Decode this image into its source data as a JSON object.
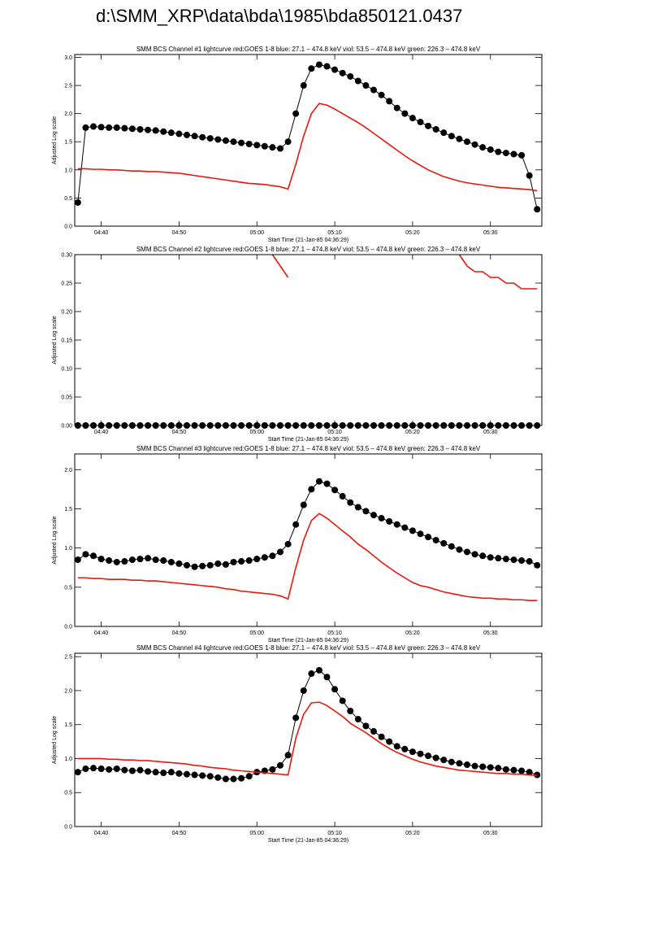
{
  "page_title": "d:\\SMM_XRP\\data\\bda\\1985\\bda850121.0437",
  "chart_data": [
    {
      "type": "line",
      "title": "SMM BCS Channel #1 lightcurve  red:GOES 1-8  blue: 27.1 – 474.8 keV  viol: 53.5 – 474.8 keV  green: 226.3 – 474.8 keV",
      "x_label": "Start Time (21-Jan-85 04:36:29)",
      "y_label": "Adjusted Log scale",
      "xlim": [
        36.6,
        96.6
      ],
      "ylim": [
        0,
        3.05
      ],
      "xticks": [
        {
          "value": 40,
          "label": "04:40"
        },
        {
          "value": 50,
          "label": "04:50"
        },
        {
          "value": 60,
          "label": "05:00"
        },
        {
          "value": 70,
          "label": "05:10"
        },
        {
          "value": 80,
          "label": "05:20"
        },
        {
          "value": 90,
          "label": "05:30"
        }
      ],
      "yticks": [
        {
          "value": 0,
          "label": "0.0"
        },
        0.5,
        {
          "value": 1,
          "label": "1.0"
        },
        1.5,
        {
          "value": 2,
          "label": "2.0"
        },
        2.5,
        {
          "value": 3,
          "label": "3.0"
        }
      ],
      "x": [
        37,
        38,
        39,
        40,
        41,
        42,
        43,
        44,
        45,
        46,
        47,
        48,
        49,
        50,
        51,
        52,
        53,
        54,
        55,
        56,
        57,
        58,
        59,
        60,
        61,
        62,
        63,
        64,
        65,
        66,
        67,
        68,
        69,
        70,
        71,
        72,
        73,
        74,
        75,
        76,
        77,
        78,
        79,
        80,
        81,
        82,
        83,
        84,
        85,
        86,
        87,
        88,
        89,
        90,
        91,
        92,
        93,
        94,
        95,
        96
      ],
      "series": [
        {
          "color": "#000000",
          "markers": true,
          "values": [
            0.42,
            1.75,
            1.77,
            1.76,
            1.75,
            1.75,
            1.74,
            1.73,
            1.72,
            1.71,
            1.7,
            1.68,
            1.66,
            1.64,
            1.62,
            1.6,
            1.58,
            1.56,
            1.54,
            1.52,
            1.5,
            1.48,
            1.46,
            1.44,
            1.42,
            1.4,
            1.38,
            1.5,
            2.0,
            2.5,
            2.8,
            2.87,
            2.84,
            2.78,
            2.72,
            2.66,
            2.58,
            2.5,
            2.42,
            2.33,
            2.22,
            2.1,
            2.0,
            1.92,
            1.85,
            1.78,
            1.72,
            1.66,
            1.6,
            1.55,
            1.5,
            1.45,
            1.4,
            1.36,
            1.32,
            1.3,
            1.28,
            1.26,
            0.9,
            0.3
          ]
        },
        {
          "color": "#e8170f",
          "markers": false,
          "values": [
            1.02,
            1.02,
            1.01,
            1.01,
            1.0,
            1.0,
            0.99,
            0.98,
            0.98,
            0.97,
            0.97,
            0.96,
            0.95,
            0.94,
            0.92,
            0.9,
            0.88,
            0.86,
            0.84,
            0.82,
            0.8,
            0.78,
            0.76,
            0.75,
            0.74,
            0.72,
            0.7,
            0.66,
            1.1,
            1.6,
            2.0,
            2.18,
            2.15,
            2.08,
            2.0,
            1.92,
            1.84,
            1.75,
            1.65,
            1.55,
            1.45,
            1.35,
            1.25,
            1.16,
            1.08,
            1.0,
            0.94,
            0.88,
            0.84,
            0.8,
            0.77,
            0.75,
            0.73,
            0.71,
            0.69,
            0.68,
            0.67,
            0.66,
            0.65,
            0.63
          ]
        }
      ]
    },
    {
      "type": "line",
      "title": "SMM BCS Channel #2 lightcurve  red:GOES 1-8  blue: 27.1 – 474.8 keV  viol: 53.5 – 474.8 keV  green: 226.3 – 474.8 keV",
      "x_label": "Start Time (21-Jan-85 04:36:29)",
      "y_label": "Adjusted Log scale",
      "xlim": [
        36.6,
        96.6
      ],
      "ylim": [
        0,
        0.3
      ],
      "xticks": [
        {
          "value": 40,
          "label": "04:40"
        },
        {
          "value": 50,
          "label": "04:50"
        },
        {
          "value": 60,
          "label": "05:00"
        },
        {
          "value": 70,
          "label": "05:10"
        },
        {
          "value": 80,
          "label": "05:20"
        },
        {
          "value": 90,
          "label": "05:30"
        }
      ],
      "yticks": [
        {
          "value": 0,
          "label": "0.00"
        },
        0.05,
        {
          "value": 0.1,
          "label": "0.10"
        },
        0.15,
        {
          "value": 0.2,
          "label": "0.20"
        },
        0.25,
        {
          "value": 0.3,
          "label": "0.30"
        }
      ],
      "x": [
        37,
        38,
        39,
        40,
        41,
        42,
        43,
        44,
        45,
        46,
        47,
        48,
        49,
        50,
        51,
        52,
        53,
        54,
        55,
        56,
        57,
        58,
        59,
        60,
        61,
        62,
        63,
        64,
        65,
        66,
        67,
        68,
        69,
        70,
        71,
        72,
        73,
        74,
        75,
        76,
        77,
        78,
        79,
        80,
        81,
        82,
        83,
        84,
        85,
        86,
        87,
        88,
        89,
        90,
        91,
        92,
        93,
        94,
        95,
        96
      ],
      "series": [
        {
          "color": "#000000",
          "markers": true,
          "values": [
            0,
            0,
            0,
            0,
            0,
            0,
            0,
            0,
            0,
            0,
            0,
            0,
            0,
            0,
            0,
            0,
            0,
            0,
            0,
            0,
            0,
            0,
            0,
            0,
            0,
            0,
            0,
            0,
            0,
            0,
            0,
            0,
            0,
            0,
            0,
            0,
            0,
            0,
            0,
            0,
            0,
            0,
            0,
            0,
            0,
            0,
            0,
            0,
            0,
            0,
            0,
            0,
            0,
            0,
            0,
            0,
            0,
            0,
            0,
            0
          ]
        },
        {
          "color": "#e8170f",
          "markers": false,
          "values": [
            null,
            null,
            null,
            null,
            null,
            null,
            null,
            null,
            null,
            null,
            null,
            null,
            null,
            null,
            null,
            null,
            null,
            null,
            null,
            null,
            null,
            null,
            null,
            null,
            null,
            0.3,
            0.28,
            0.26,
            null,
            null,
            null,
            null,
            null,
            null,
            null,
            null,
            null,
            null,
            null,
            null,
            null,
            null,
            null,
            null,
            null,
            null,
            null,
            null,
            null,
            0.3,
            0.28,
            0.27,
            0.27,
            0.26,
            0.26,
            0.25,
            0.25,
            0.24,
            0.24,
            0.24
          ]
        }
      ]
    },
    {
      "type": "line",
      "title": "SMM BCS Channel #3 lightcurve  red:GOES 1-8  blue: 27.1 – 474.8 keV  viol: 53.5 – 474.8 keV  green: 226.3 – 474.8 keV",
      "x_label": "Start Time (21-Jan-85 04:36:29)",
      "y_label": "Adjusted Log scale",
      "xlim": [
        36.6,
        96.6
      ],
      "ylim": [
        0,
        2.2
      ],
      "xticks": [
        {
          "value": 40,
          "label": "04:40"
        },
        {
          "value": 50,
          "label": "04:50"
        },
        {
          "value": 60,
          "label": "05:00"
        },
        {
          "value": 70,
          "label": "05:10"
        },
        {
          "value": 80,
          "label": "05:20"
        },
        {
          "value": 90,
          "label": "05:30"
        }
      ],
      "yticks": [
        {
          "value": 0,
          "label": "0.0"
        },
        0.5,
        {
          "value": 1,
          "label": "1.0"
        },
        1.5,
        {
          "value": 2,
          "label": "2.0"
        }
      ],
      "x": [
        37,
        38,
        39,
        40,
        41,
        42,
        43,
        44,
        45,
        46,
        47,
        48,
        49,
        50,
        51,
        52,
        53,
        54,
        55,
        56,
        57,
        58,
        59,
        60,
        61,
        62,
        63,
        64,
        65,
        66,
        67,
        68,
        69,
        70,
        71,
        72,
        73,
        74,
        75,
        76,
        77,
        78,
        79,
        80,
        81,
        82,
        83,
        84,
        85,
        86,
        87,
        88,
        89,
        90,
        91,
        92,
        93,
        94,
        95,
        96
      ],
      "series": [
        {
          "color": "#000000",
          "markers": true,
          "values": [
            0.85,
            0.92,
            0.9,
            0.86,
            0.84,
            0.82,
            0.83,
            0.85,
            0.86,
            0.87,
            0.85,
            0.84,
            0.82,
            0.8,
            0.78,
            0.76,
            0.77,
            0.78,
            0.8,
            0.79,
            0.82,
            0.83,
            0.84,
            0.86,
            0.88,
            0.9,
            0.95,
            1.05,
            1.3,
            1.55,
            1.75,
            1.85,
            1.82,
            1.74,
            1.66,
            1.58,
            1.52,
            1.47,
            1.42,
            1.38,
            1.34,
            1.3,
            1.26,
            1.22,
            1.18,
            1.14,
            1.1,
            1.06,
            1.02,
            0.98,
            0.95,
            0.92,
            0.9,
            0.88,
            0.87,
            0.86,
            0.85,
            0.84,
            0.83,
            0.78
          ]
        },
        {
          "color": "#e8170f",
          "markers": false,
          "values": [
            0.62,
            0.62,
            0.61,
            0.61,
            0.6,
            0.6,
            0.6,
            0.59,
            0.59,
            0.58,
            0.58,
            0.57,
            0.56,
            0.55,
            0.54,
            0.53,
            0.52,
            0.51,
            0.5,
            0.48,
            0.47,
            0.45,
            0.44,
            0.43,
            0.42,
            0.41,
            0.39,
            0.35,
            0.75,
            1.1,
            1.35,
            1.44,
            1.38,
            1.3,
            1.22,
            1.14,
            1.05,
            0.98,
            0.9,
            0.82,
            0.75,
            0.68,
            0.62,
            0.56,
            0.52,
            0.5,
            0.47,
            0.44,
            0.42,
            0.4,
            0.38,
            0.37,
            0.36,
            0.36,
            0.35,
            0.35,
            0.34,
            0.34,
            0.33,
            0.33
          ]
        }
      ]
    },
    {
      "type": "line",
      "title": "SMM BCS Channel #4 lightcurve  red:GOES 1-8  blue: 27.1 – 474.8 keV  viol: 53.5 – 474.8 keV  green: 226.3 – 474.8 keV",
      "x_label": "Start Time (21-Jan-85 04:36:29)",
      "y_label": "Adjusted Log scale",
      "xlim": [
        36.6,
        96.6
      ],
      "ylim": [
        0,
        2.55
      ],
      "xticks": [
        {
          "value": 40,
          "label": "04:40"
        },
        {
          "value": 50,
          "label": "04:50"
        },
        {
          "value": 60,
          "label": "05:00"
        },
        {
          "value": 70,
          "label": "05:10"
        },
        {
          "value": 80,
          "label": "05:20"
        },
        {
          "value": 90,
          "label": "05:30"
        }
      ],
      "yticks": [
        {
          "value": 0,
          "label": "0.0"
        },
        0.5,
        {
          "value": 1,
          "label": "1.0"
        },
        1.5,
        {
          "value": 2,
          "label": "2.0"
        },
        2.5
      ],
      "x": [
        37,
        38,
        39,
        40,
        41,
        42,
        43,
        44,
        45,
        46,
        47,
        48,
        49,
        50,
        51,
        52,
        53,
        54,
        55,
        56,
        57,
        58,
        59,
        60,
        61,
        62,
        63,
        64,
        65,
        66,
        67,
        68,
        69,
        70,
        71,
        72,
        73,
        74,
        75,
        76,
        77,
        78,
        79,
        80,
        81,
        82,
        83,
        84,
        85,
        86,
        87,
        88,
        89,
        90,
        91,
        92,
        93,
        94,
        95,
        96
      ],
      "series": [
        {
          "color": "#000000",
          "markers": true,
          "values": [
            0.8,
            0.85,
            0.86,
            0.85,
            0.84,
            0.85,
            0.83,
            0.82,
            0.83,
            0.81,
            0.8,
            0.79,
            0.8,
            0.78,
            0.77,
            0.76,
            0.75,
            0.74,
            0.72,
            0.7,
            0.7,
            0.71,
            0.74,
            0.8,
            0.82,
            0.84,
            0.9,
            1.05,
            1.6,
            2.0,
            2.25,
            2.3,
            2.2,
            2.02,
            1.85,
            1.7,
            1.58,
            1.48,
            1.4,
            1.32,
            1.25,
            1.18,
            1.14,
            1.1,
            1.07,
            1.04,
            1.01,
            0.98,
            0.95,
            0.93,
            0.91,
            0.89,
            0.88,
            0.87,
            0.86,
            0.84,
            0.83,
            0.82,
            0.8,
            0.76
          ]
        },
        {
          "color": "#e8170f",
          "markers": false,
          "values": [
            1.0,
            1.0,
            1.0,
            1.0,
            0.99,
            0.99,
            0.98,
            0.98,
            0.97,
            0.97,
            0.96,
            0.95,
            0.94,
            0.93,
            0.92,
            0.9,
            0.89,
            0.87,
            0.86,
            0.85,
            0.83,
            0.82,
            0.81,
            0.8,
            0.79,
            0.78,
            0.77,
            0.76,
            1.3,
            1.65,
            1.82,
            1.83,
            1.78,
            1.7,
            1.62,
            1.52,
            1.45,
            1.38,
            1.3,
            1.22,
            1.15,
            1.09,
            1.04,
            0.99,
            0.95,
            0.92,
            0.89,
            0.87,
            0.85,
            0.83,
            0.82,
            0.81,
            0.8,
            0.79,
            0.78,
            0.78,
            0.77,
            0.77,
            0.76,
            0.75
          ]
        }
      ]
    }
  ]
}
